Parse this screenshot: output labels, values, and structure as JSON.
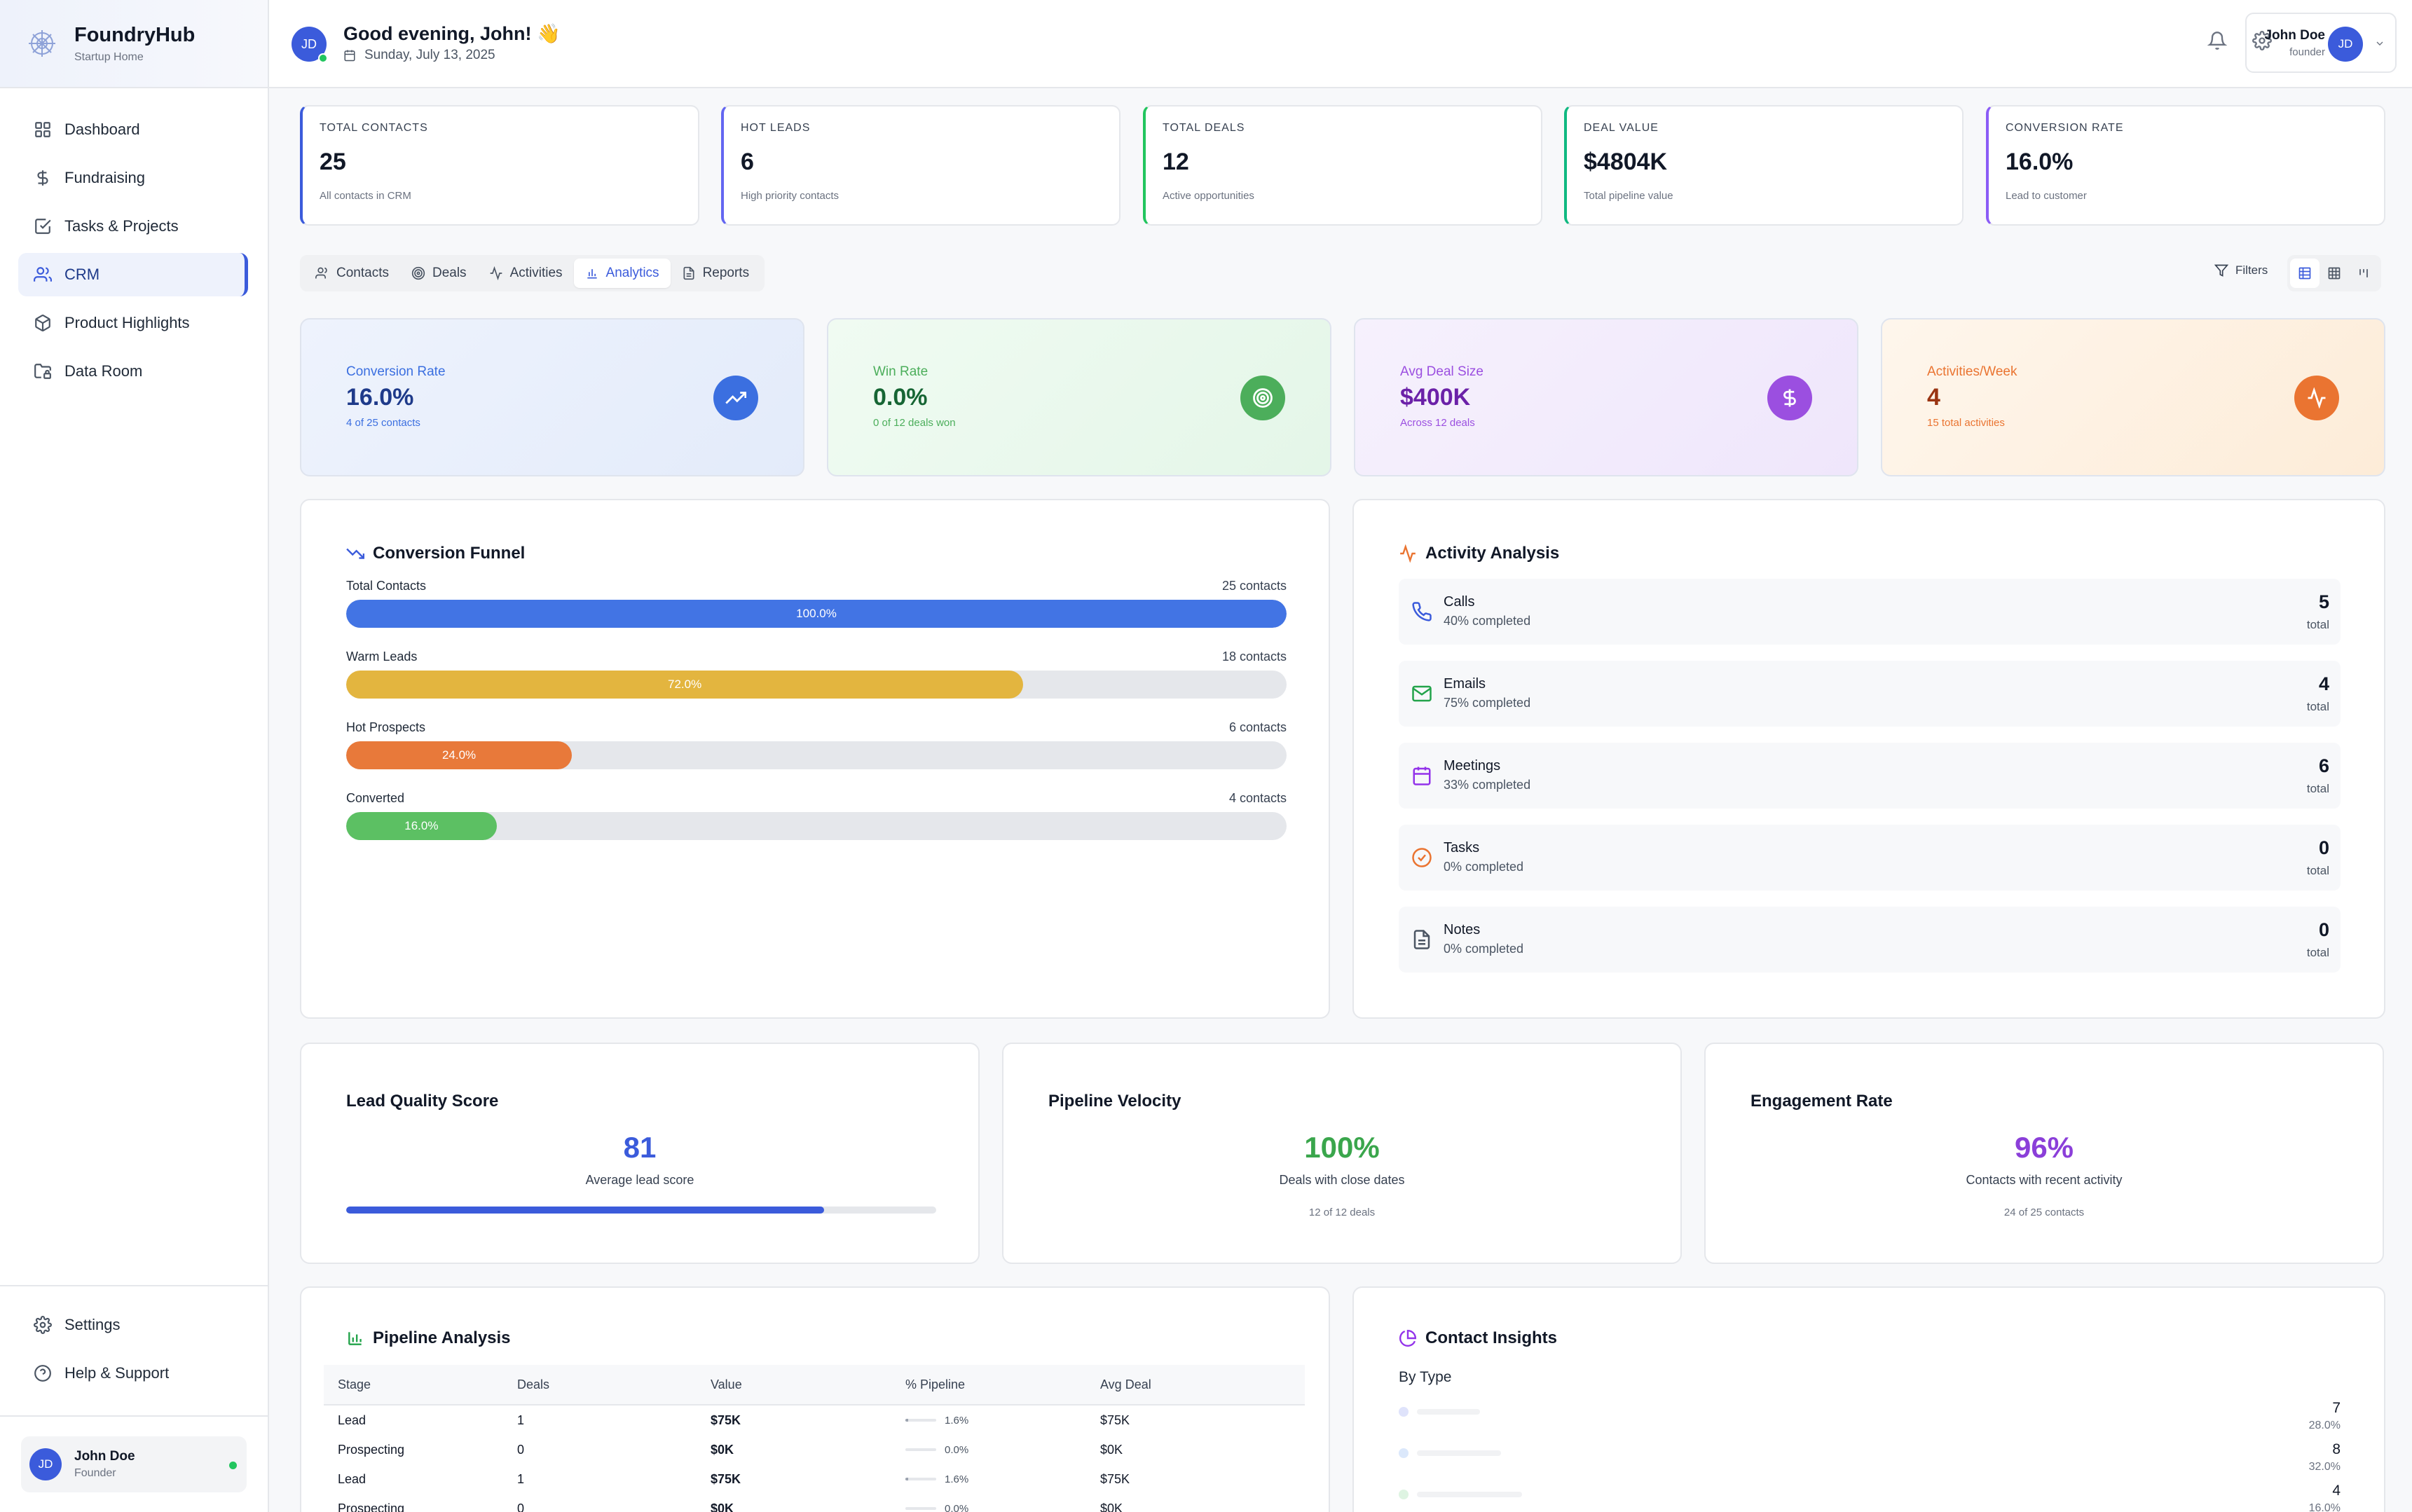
{
  "brand": {
    "name": "FoundryHub",
    "subtitle": "Startup Home"
  },
  "sidebar": {
    "items": [
      {
        "label": "Dashboard",
        "icon": "grid-icon"
      },
      {
        "label": "Fundraising",
        "icon": "dollar-icon"
      },
      {
        "label": "Tasks & Projects",
        "icon": "checkbox-icon"
      },
      {
        "label": "CRM",
        "icon": "users-icon",
        "active": true
      },
      {
        "label": "Product Highlights",
        "icon": "package-icon"
      },
      {
        "label": "Data Room",
        "icon": "folder-lock-icon"
      }
    ],
    "bottom_items": [
      {
        "label": "Settings",
        "icon": "gear-icon"
      },
      {
        "label": "Help & Support",
        "icon": "help-circle-icon"
      }
    ],
    "user": {
      "initials": "JD",
      "name": "John Doe",
      "role": "Founder"
    }
  },
  "header": {
    "avatar_initials": "JD",
    "greeting": "Good evening, John! 👋",
    "date": "Sunday, July 13, 2025",
    "profile": {
      "name": "John Doe",
      "role": "founder",
      "initials": "JD"
    }
  },
  "stats": [
    {
      "label": "TOTAL CONTACTS",
      "value": "25",
      "sub": "All contacts in CRM",
      "accent": "#3b5bdb"
    },
    {
      "label": "HOT LEADS",
      "value": "6",
      "sub": "High priority contacts",
      "accent": "#6366f1"
    },
    {
      "label": "TOTAL DEALS",
      "value": "12",
      "sub": "Active opportunities",
      "accent": "#22c55e"
    },
    {
      "label": "DEAL VALUE",
      "value": "$4804K",
      "sub": "Total pipeline value",
      "accent": "#10b981"
    },
    {
      "label": "CONVERSION RATE",
      "value": "16.0%",
      "sub": "Lead to customer",
      "accent": "#8b5cf6"
    }
  ],
  "tabs": [
    {
      "label": "Contacts",
      "icon": "users-icon"
    },
    {
      "label": "Deals",
      "icon": "target-icon"
    },
    {
      "label": "Activities",
      "icon": "activity-icon"
    },
    {
      "label": "Analytics",
      "icon": "bar-chart-icon",
      "active": true
    },
    {
      "label": "Reports",
      "icon": "file-icon"
    }
  ],
  "filters_label": "Filters",
  "kpis": [
    {
      "label": "Conversion Rate",
      "value": "16.0%",
      "sub": "4 of 25 contacts",
      "icon": "trending-up-icon",
      "color": "#3b6fe0",
      "text": "#1e3a8a",
      "bg": "linear-gradient(135deg,#eef3fd,#e3ebfa)"
    },
    {
      "label": "Win Rate",
      "value": "0.0%",
      "sub": "0 of 12 deals won",
      "icon": "target-icon",
      "color": "#4cae5b",
      "text": "#166534",
      "bg": "linear-gradient(135deg,#f0fbf2,#e4f6e8)"
    },
    {
      "label": "Avg Deal Size",
      "value": "$400K",
      "sub": "Across 12 deals",
      "icon": "dollar-icon",
      "color": "#9b4fe0",
      "text": "#6b21a8",
      "bg": "linear-gradient(135deg,#f6f1fd,#efe6fb)"
    },
    {
      "label": "Activities/Week",
      "value": "4",
      "sub": "15 total activities",
      "icon": "activity-icon",
      "color": "#ea7431",
      "text": "#9a3412",
      "bg": "linear-gradient(135deg,#fef6ec,#fdecd8)"
    }
  ],
  "funnel": {
    "title": "Conversion Funnel",
    "rows": [
      {
        "label": "Total Contacts",
        "count": "25 contacts",
        "percent": 100.0,
        "percent_label": "100.0%",
        "color": "#4274e4"
      },
      {
        "label": "Warm Leads",
        "count": "18 contacts",
        "percent": 72.0,
        "percent_label": "72.0%",
        "color": "#e3b53f"
      },
      {
        "label": "Hot Prospects",
        "count": "6 contacts",
        "percent": 24.0,
        "percent_label": "24.0%",
        "color": "#e8793a"
      },
      {
        "label": "Converted",
        "count": "4 contacts",
        "percent": 16.0,
        "percent_label": "16.0%",
        "color": "#5cc063"
      }
    ]
  },
  "activity": {
    "title": "Activity Analysis",
    "rows": [
      {
        "name": "Calls",
        "progress": "40% completed",
        "value": "5",
        "unit": "total",
        "icon": "phone-icon",
        "color": "#3b5bdb"
      },
      {
        "name": "Emails",
        "progress": "75% completed",
        "value": "4",
        "unit": "total",
        "icon": "mail-icon",
        "color": "#22a34a"
      },
      {
        "name": "Meetings",
        "progress": "33% completed",
        "value": "6",
        "unit": "total",
        "icon": "calendar-icon",
        "color": "#9333ea"
      },
      {
        "name": "Tasks",
        "progress": "0% completed",
        "value": "0",
        "unit": "total",
        "icon": "check-circle-icon",
        "color": "#ea7431"
      },
      {
        "name": "Notes",
        "progress": "0% completed",
        "value": "0",
        "unit": "total",
        "icon": "file-text-icon",
        "color": "#4b5563"
      }
    ]
  },
  "metrics": [
    {
      "title": "Lead Quality Score",
      "value": "81",
      "sub": "Average lead score",
      "footer": "",
      "color": "#3b5bdb",
      "bar": 0.81
    },
    {
      "title": "Pipeline Velocity",
      "value": "100%",
      "sub": "Deals with close dates",
      "footer": "12 of 12 deals",
      "color": "#3aa64c"
    },
    {
      "title": "Engagement Rate",
      "value": "96%",
      "sub": "Contacts with recent activity",
      "footer": "24 of 25 contacts",
      "color": "#8b3fd9"
    }
  ],
  "pipeline": {
    "title": "Pipeline Analysis",
    "columns": [
      "Stage",
      "Deals",
      "Value",
      "% Pipeline",
      "Avg Deal"
    ],
    "rows": [
      {
        "stage": "Lead",
        "deals": "1",
        "value": "$75K",
        "pct": "1.6%",
        "pct_num": 1.6,
        "avg": "$75K"
      },
      {
        "stage": "Prospecting",
        "deals": "0",
        "value": "$0K",
        "pct": "0.0%",
        "pct_num": 0.0,
        "avg": "$0K"
      },
      {
        "stage": "Lead",
        "deals": "1",
        "value": "$75K",
        "pct": "1.6%",
        "pct_num": 1.6,
        "avg": "$75K"
      },
      {
        "stage": "Prospecting",
        "deals": "0",
        "value": "$0K",
        "pct": "0.0%",
        "pct_num": 0.0,
        "avg": "$0K"
      }
    ]
  },
  "insights": {
    "title": "Contact Insights",
    "subtitle": "By Type",
    "rows": [
      {
        "value": "7",
        "pct": "28.0%",
        "color": "#dfe3fb"
      },
      {
        "value": "8",
        "pct": "32.0%",
        "color": "#dbe8fb"
      },
      {
        "value": "4",
        "pct": "16.0%",
        "color": "#def4e2"
      }
    ]
  }
}
